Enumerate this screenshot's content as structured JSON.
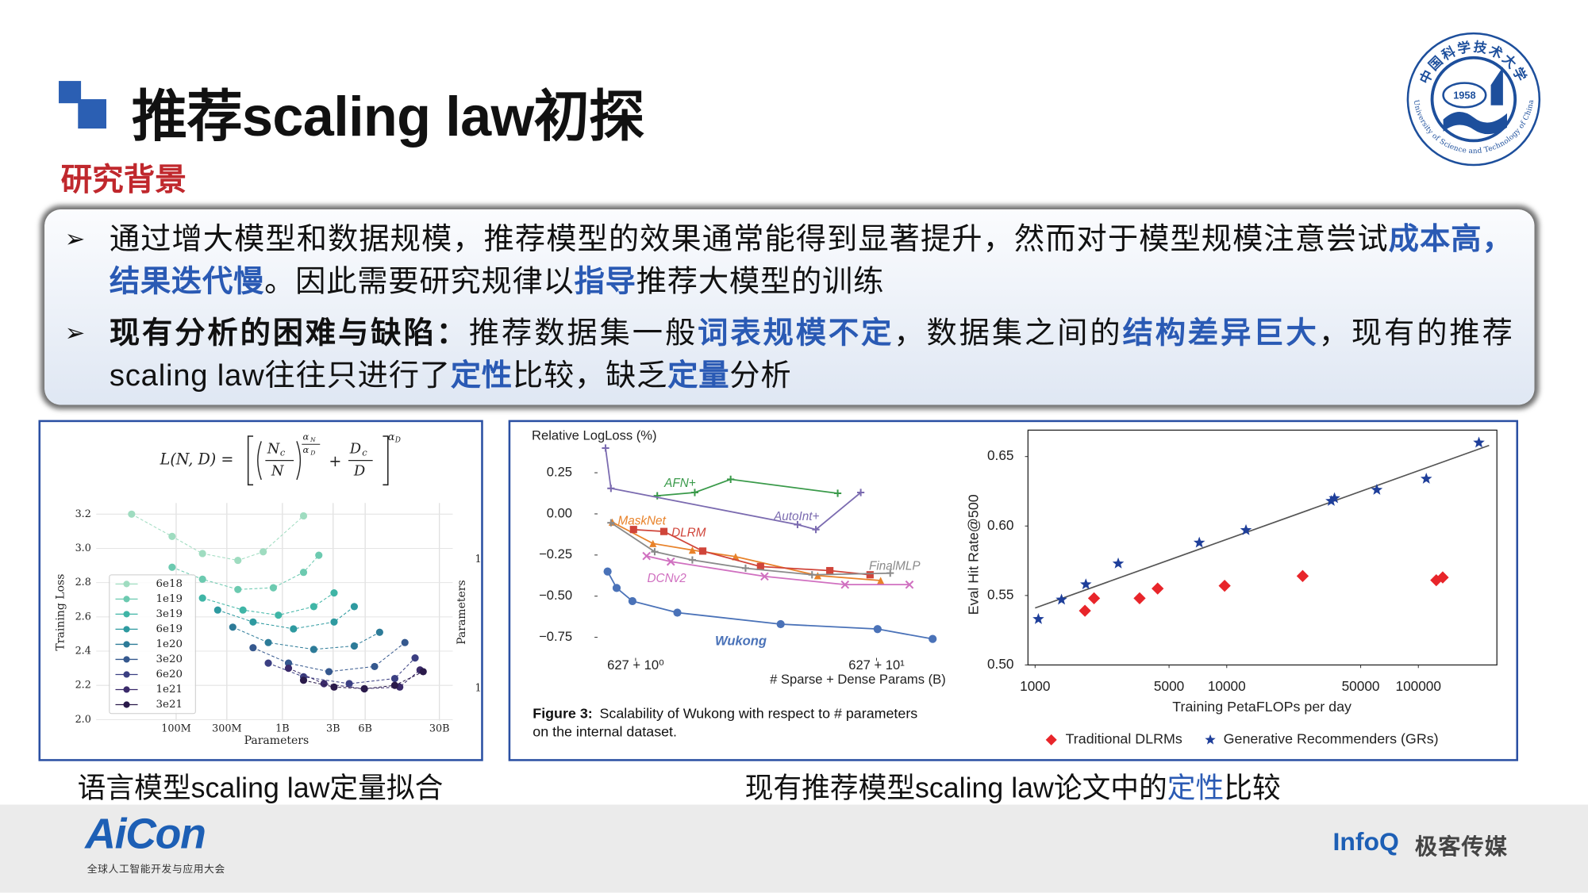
{
  "header": {
    "title": "推荐scaling law初探",
    "section": "研究背景"
  },
  "logo": {
    "year": "1958",
    "name_zh": "中国科学技术大学",
    "name_en": "University of Science and Technology of China"
  },
  "bullets": [
    {
      "segments": [
        {
          "text": "通过增大模型和数据规模，推荐模型的效果通常能得到显著提升，然而对于模型规模注意尝试",
          "style": "normal"
        },
        {
          "text": "成本高，结果迭代慢",
          "style": "blue"
        },
        {
          "text": "。因此需要研究规律以",
          "style": "normal"
        },
        {
          "text": "指导",
          "style": "blue"
        },
        {
          "text": "推荐大模型的训练",
          "style": "normal"
        }
      ]
    },
    {
      "segments": [
        {
          "text": "现有分析的困难与缺陷：",
          "style": "bold"
        },
        {
          "text": "推荐数据集一般",
          "style": "normal"
        },
        {
          "text": "词表规模不定",
          "style": "blue"
        },
        {
          "text": "，数据集之间的",
          "style": "normal"
        },
        {
          "text": "结构差异巨大",
          "style": "blue"
        },
        {
          "text": "，现有的推荐scaling law往往只进行了",
          "style": "normal"
        },
        {
          "text": "定性",
          "style": "blue"
        },
        {
          "text": "比较，缺乏",
          "style": "normal"
        },
        {
          "text": "定量",
          "style": "blue"
        },
        {
          "text": "分析",
          "style": "normal"
        }
      ]
    }
  ],
  "figures": {
    "left": {
      "caption": "语言模型scaling law定量拟合",
      "formula": {
        "lhs": "L(N, D) =",
        "n_num": "N",
        "n_sub": "c",
        "n_den": "N",
        "exp_num": "α",
        "exp_num_sub": "N",
        "exp_den": "α",
        "exp_den_sub": "D",
        "plus": "+",
        "d_num": "D",
        "d_sub": "c",
        "d_den": "D",
        "outer_exp": "α",
        "outer_exp_sub": "D"
      },
      "chart": {
        "type": "line",
        "x_label": "Parameters",
        "y_label": "Training Loss",
        "y2_label": "Parameters",
        "y2_tick_fragments": [
          "1",
          "1"
        ],
        "xscale": "log",
        "xlim": [
          17700000,
          40000000000
        ],
        "ylim": [
          1.994,
          3.265
        ],
        "xticks": [
          {
            "value": 100000000,
            "label": "100M"
          },
          {
            "value": 300000000,
            "label": "300M"
          },
          {
            "value": 1000000000,
            "label": "1B"
          },
          {
            "value": 3000000000,
            "label": "3B"
          },
          {
            "value": 6000000000,
            "label": "6B"
          },
          {
            "value": 30000000000,
            "label": "30B"
          }
        ],
        "yticks": [
          {
            "value": 2,
            "label": "2.0"
          },
          2.2,
          2.4,
          2.6,
          2.8,
          {
            "value": 3,
            "label": "3.0"
          },
          3.2
        ],
        "grid": true,
        "series": [
          {
            "name": "6e18",
            "color": "#9fdcc0",
            "x": [
              38100000,
              91600000,
              177000000,
              381000000,
              659000000,
              1580000000
            ],
            "values": [
              3.2,
              3.07,
              2.97,
              2.93,
              2.98,
              3.19
            ]
          },
          {
            "name": "1e19",
            "color": "#6ccab0",
            "x": [
              91600000,
              177000000,
              381000000,
              821000000,
              1580000000,
              2200000000
            ],
            "values": [
              2.89,
              2.82,
              2.76,
              2.77,
              2.86,
              2.96
            ]
          },
          {
            "name": "3e19",
            "color": "#3fb5a6",
            "x": [
              177000000,
              425000000,
              916000000,
              1970000000,
              3060000000
            ],
            "values": [
              2.71,
              2.64,
              2.61,
              2.66,
              2.74
            ]
          },
          {
            "name": "6e19",
            "color": "#2e9aa0",
            "x": [
              246000000,
              529000000,
              1270000000,
              3060000000,
              4740000000
            ],
            "values": [
              2.64,
              2.57,
              2.53,
              2.57,
              2.66
            ]
          },
          {
            "name": "1e20",
            "color": "#2d7b98",
            "x": [
              341000000,
              736000000,
              1970000000,
              4740000000,
              8210000000
            ],
            "values": [
              2.54,
              2.45,
              2.41,
              2.43,
              2.51
            ]
          },
          {
            "name": "3e20",
            "color": "#35588e",
            "x": [
              529000000,
              1140000000,
              2740000000,
              7360000000,
              14200000000
            ],
            "values": [
              2.42,
              2.33,
              2.28,
              2.31,
              2.45
            ]
          },
          {
            "name": "6e20",
            "color": "#3b3f82",
            "x": [
              736000000,
              1580000000,
              4250000000,
              11400000000,
              17700000000
            ],
            "values": [
              2.33,
              2.25,
              2.21,
              2.24,
              2.36
            ]
          },
          {
            "name": "1e21",
            "color": "#3a2a6a",
            "x": [
              1140000000,
              2460000000,
              5900000000,
              12700000000,
              19700000000
            ],
            "values": [
              2.3,
              2.21,
              2.18,
              2.19,
              2.29
            ]
          },
          {
            "name": "3e21",
            "color": "#2a1a4a",
            "x": [
              1580000000,
              3060000000,
              5900000000,
              11400000000,
              21100000000
            ],
            "values": [
              2.23,
              2.19,
              2.18,
              2.2,
              2.28
            ]
          }
        ]
      }
    },
    "middle": {
      "caption_label": "Figure 3:",
      "caption_lines": [
        "Scalability of Wukong with respect to # parameters",
        "on the internal dataset."
      ],
      "chart": {
        "type": "line",
        "title": "Relative LogLoss (%)",
        "x_label": "# Sparse + Dense Params (B)",
        "xscale": "log",
        "xlim": [
          0.695,
          21.6
        ],
        "ylim": [
          -0.875,
          0.435
        ],
        "xticks": [
          {
            "value": 1,
            "label": "627 + 10⁰"
          },
          {
            "value": 10,
            "label": "627 + 10¹"
          }
        ],
        "yticks": [
          {
            "value": -0.75,
            "label": "−0.75"
          },
          {
            "value": -0.5,
            "label": "−0.50"
          },
          {
            "value": -0.25,
            "label": "−0.25"
          },
          {
            "value": 0,
            "label": "0.00"
          },
          0.25
        ],
        "grid": false,
        "series": [
          {
            "name": "AFN+",
            "color": "#3a9a4a",
            "marker": "plus",
            "x": [
              1.23,
              1.76,
              2.48,
              6.9
            ],
            "values": [
              0.11,
              0.13,
              0.21,
              0.125
            ]
          },
          {
            "name": "AutoInt+",
            "color": "#7b6bb0",
            "marker": "plus",
            "x": [
              0.75,
              0.79,
              4.7,
              5.6,
              8.6
            ],
            "values": [
              0.4,
              0.155,
              -0.065,
              -0.095,
              0.13
            ]
          },
          {
            "name": "MaskNet",
            "color": "#e8822a",
            "marker": "triangle",
            "x": [
              0.8,
              1.18,
              1.72,
              2.6,
              5.7,
              10.4
            ],
            "values": [
              -0.05,
              -0.18,
              -0.22,
              -0.26,
              -0.375,
              -0.405
            ]
          },
          {
            "name": "DLRM",
            "color": "#d0453a",
            "marker": "square",
            "x": [
              0.98,
              1.31,
              1.9,
              3.3,
              6.4,
              9.4
            ],
            "values": [
              -0.095,
              -0.107,
              -0.226,
              -0.32,
              -0.345,
              -0.37
            ]
          },
          {
            "name": "FinalMLP",
            "color": "#8a8a8a",
            "marker": "plus",
            "x": [
              0.79,
              1.2,
              1.72,
              2.86,
              5.4,
              11.4
            ],
            "values": [
              -0.054,
              -0.23,
              -0.28,
              -0.33,
              -0.37,
              -0.36
            ]
          },
          {
            "name": "DCNv2",
            "color": "#d070c0",
            "marker": "x",
            "x": [
              1.11,
              1.4,
              3.43,
              7.4,
              13.7
            ],
            "values": [
              -0.256,
              -0.29,
              -0.38,
              -0.43,
              -0.43
            ]
          },
          {
            "name": "Wukong",
            "color": "#4a72b8",
            "marker": "circle",
            "x": [
              0.765,
              0.834,
              0.97,
              1.49,
              4.0,
              10.1,
              17.1
            ],
            "values": [
              -0.35,
              -0.45,
              -0.53,
              -0.6,
              -0.67,
              -0.7,
              -0.76
            ]
          }
        ]
      }
    },
    "right": {
      "chart": {
        "type": "scatter",
        "x_label": "Training PetaFLOPs per day",
        "y_label": "Eval Hit Rate@500",
        "xscale": "log",
        "xlim": [
          918,
          257000
        ],
        "ylim": [
          0.5,
          0.669
        ],
        "xticks": [
          1000,
          5000,
          10000,
          50000,
          100000
        ],
        "yticks": [
          {
            "value": 0.5,
            "label": "0.50"
          },
          0.55,
          {
            "value": 0.6,
            "label": "0.60"
          },
          0.65
        ],
        "grid": false,
        "frame": true,
        "series": [
          {
            "name": "Traditional DLRMs",
            "color": "#e8252a",
            "marker": "diamond",
            "x": [
              1820,
              2030,
              3510,
              4360,
              9750,
              24900,
              124000,
              134000
            ],
            "values": [
              0.539,
              0.548,
              0.548,
              0.555,
              0.557,
              0.564,
              0.561,
              0.563
            ]
          },
          {
            "name": "Generative Recommenders (GRs)",
            "color": "#1f3f9a",
            "marker": "star",
            "x": [
              1040,
              1373,
              1840,
              2715,
              7190,
              12600,
              35080,
              36500,
              60700,
              110000,
              207000
            ],
            "values": [
              0.533,
              0.547,
              0.558,
              0.573,
              0.588,
              0.597,
              0.618,
              0.62,
              0.626,
              0.634,
              0.66
            ]
          }
        ],
        "trend_line": {
          "color": "#555555",
          "x": [
            1000,
            234000
          ],
          "values": [
            0.541,
            0.658
          ]
        }
      }
    },
    "right_caption": [
      {
        "text": "现有推荐模型scaling law论文中的",
        "style": "normal"
      },
      {
        "text": "定性",
        "style": "blue"
      },
      {
        "text": "比较",
        "style": "normal"
      }
    ]
  },
  "footer": {
    "brand": "AiCon",
    "brand_sub": "全球人工智能开发与应用大会",
    "partner": "InfoQ",
    "partner_zh": "极客传媒"
  }
}
